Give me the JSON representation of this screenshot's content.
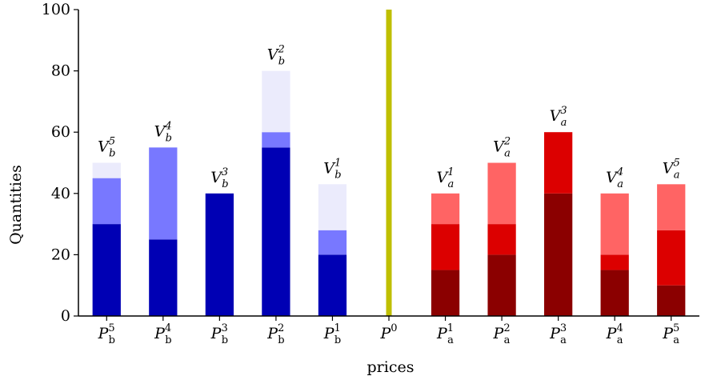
{
  "chart_data": {
    "type": "bar",
    "stacked": true,
    "xlabel": "prices",
    "ylabel": "Quantities",
    "ylim": [
      0,
      100
    ],
    "yticks": [
      0,
      20,
      40,
      60,
      80,
      100
    ],
    "grid": false,
    "legend": "none",
    "categories": [
      {
        "sym": "P",
        "sub": "b",
        "sup": "5"
      },
      {
        "sym": "P",
        "sub": "b",
        "sup": "4"
      },
      {
        "sym": "P",
        "sub": "b",
        "sup": "3"
      },
      {
        "sym": "P",
        "sub": "b",
        "sup": "2"
      },
      {
        "sym": "P",
        "sub": "b",
        "sup": "1"
      },
      {
        "sym": "P",
        "sub": "",
        "sup": "0"
      },
      {
        "sym": "P",
        "sub": "a",
        "sup": "1"
      },
      {
        "sym": "P",
        "sub": "a",
        "sup": "2"
      },
      {
        "sym": "P",
        "sub": "a",
        "sup": "3"
      },
      {
        "sym": "P",
        "sub": "a",
        "sup": "4"
      },
      {
        "sym": "P",
        "sub": "a",
        "sup": "5"
      }
    ],
    "bars": [
      {
        "category": 0,
        "side": "bid",
        "segments": [
          30,
          15,
          5
        ],
        "label": {
          "sym": "V",
          "sub": "b",
          "sup": "5"
        }
      },
      {
        "category": 1,
        "side": "bid",
        "segments": [
          25,
          30,
          0
        ],
        "label": {
          "sym": "V",
          "sub": "b",
          "sup": "4"
        }
      },
      {
        "category": 2,
        "side": "bid",
        "segments": [
          40,
          0,
          0
        ],
        "label": {
          "sym": "V",
          "sub": "b",
          "sup": "3"
        }
      },
      {
        "category": 3,
        "side": "bid",
        "segments": [
          55,
          5,
          20
        ],
        "label": {
          "sym": "V",
          "sub": "b",
          "sup": "2"
        }
      },
      {
        "category": 4,
        "side": "bid",
        "segments": [
          20,
          8,
          15
        ],
        "label": {
          "sym": "V",
          "sub": "b",
          "sup": "1"
        }
      },
      {
        "category": 6,
        "side": "ask",
        "segments": [
          15,
          15,
          10
        ],
        "label": {
          "sym": "V",
          "sub": "a",
          "sup": "1"
        }
      },
      {
        "category": 7,
        "side": "ask",
        "segments": [
          20,
          10,
          20
        ],
        "label": {
          "sym": "V",
          "sub": "a",
          "sup": "2"
        }
      },
      {
        "category": 8,
        "side": "ask",
        "segments": [
          40,
          20,
          0
        ],
        "label": {
          "sym": "V",
          "sub": "a",
          "sup": "3"
        }
      },
      {
        "category": 9,
        "side": "ask",
        "segments": [
          15,
          5,
          20
        ],
        "label": {
          "sym": "V",
          "sub": "a",
          "sup": "4"
        }
      },
      {
        "category": 10,
        "side": "ask",
        "segments": [
          10,
          18,
          15
        ],
        "label": {
          "sym": "V",
          "sub": "a",
          "sup": "5"
        }
      }
    ],
    "mid_line_category": 5,
    "colors": {
      "bid": [
        "#0000b4",
        "#7878ff",
        "#ebebfc"
      ],
      "ask": [
        "#8b0000",
        "#dc0000",
        "#ff6464"
      ],
      "mid_line": "#bfbf00",
      "axis": "#000000"
    }
  }
}
